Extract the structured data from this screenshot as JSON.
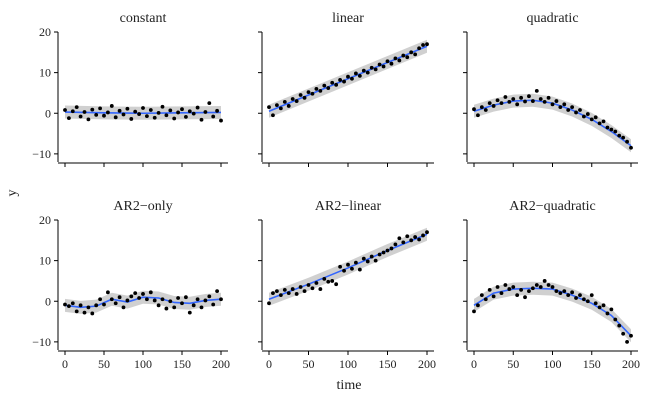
{
  "chart_data": {
    "type": "scatter",
    "layout": "facet-grid-2x3",
    "xlabel": "time",
    "ylabel": "y",
    "xlim": [
      0,
      200
    ],
    "ylim": [
      -12,
      20
    ],
    "xticks": [
      0,
      50,
      100,
      150,
      200
    ],
    "yticks": [
      -10,
      0,
      10,
      20
    ],
    "grid": false,
    "point_color": "#000000",
    "trend_color": "#3366ff",
    "ribbon_color": "#c8c8c8",
    "facets": [
      {
        "title": "constant",
        "trend": {
          "x": [
            0,
            50,
            100,
            150,
            200
          ],
          "y": [
            0.3,
            0.1,
            0.0,
            0.1,
            0.2
          ]
        },
        "points": [
          [
            0,
            0.8
          ],
          [
            5,
            -1.2
          ],
          [
            10,
            0.5
          ],
          [
            15,
            1.5
          ],
          [
            20,
            -0.8
          ],
          [
            25,
            0.3
          ],
          [
            30,
            -1.5
          ],
          [
            35,
            0.9
          ],
          [
            40,
            -0.4
          ],
          [
            45,
            1.2
          ],
          [
            50,
            -0.6
          ],
          [
            55,
            0.2
          ],
          [
            60,
            1.8
          ],
          [
            65,
            -1.0
          ],
          [
            70,
            0.6
          ],
          [
            75,
            -0.3
          ],
          [
            80,
            1.1
          ],
          [
            85,
            -1.4
          ],
          [
            90,
            0.4
          ],
          [
            95,
            -0.2
          ],
          [
            100,
            1.3
          ],
          [
            105,
            -0.7
          ],
          [
            110,
            0.8
          ],
          [
            115,
            -1.1
          ],
          [
            120,
            0.1
          ],
          [
            125,
            1.6
          ],
          [
            130,
            -0.5
          ],
          [
            135,
            0.7
          ],
          [
            140,
            -1.3
          ],
          [
            145,
            0.2
          ],
          [
            150,
            1.0
          ],
          [
            155,
            -0.9
          ],
          [
            160,
            0.5
          ],
          [
            165,
            -0.1
          ],
          [
            170,
            1.4
          ],
          [
            175,
            -1.6
          ],
          [
            180,
            0.3
          ],
          [
            185,
            2.5
          ],
          [
            190,
            -0.8
          ],
          [
            195,
            0.6
          ],
          [
            200,
            -1.8
          ]
        ]
      },
      {
        "title": "linear",
        "trend": {
          "x": [
            0,
            50,
            100,
            150,
            200
          ],
          "y": [
            0.5,
            4.5,
            8.5,
            12.5,
            16.5
          ]
        },
        "points": [
          [
            0,
            1.5
          ],
          [
            5,
            -0.5
          ],
          [
            10,
            2.0
          ],
          [
            15,
            1.2
          ],
          [
            20,
            2.8
          ],
          [
            25,
            1.8
          ],
          [
            30,
            3.5
          ],
          [
            35,
            3.0
          ],
          [
            40,
            4.5
          ],
          [
            45,
            3.8
          ],
          [
            50,
            5.2
          ],
          [
            55,
            4.8
          ],
          [
            60,
            6.0
          ],
          [
            65,
            5.5
          ],
          [
            70,
            6.8
          ],
          [
            75,
            6.2
          ],
          [
            80,
            7.5
          ],
          [
            85,
            7.0
          ],
          [
            90,
            8.2
          ],
          [
            95,
            7.8
          ],
          [
            100,
            9.0
          ],
          [
            105,
            8.5
          ],
          [
            110,
            9.8
          ],
          [
            115,
            9.2
          ],
          [
            120,
            10.5
          ],
          [
            125,
            10.0
          ],
          [
            130,
            11.2
          ],
          [
            135,
            10.8
          ],
          [
            140,
            12.0
          ],
          [
            145,
            11.5
          ],
          [
            150,
            12.8
          ],
          [
            155,
            12.2
          ],
          [
            160,
            13.5
          ],
          [
            165,
            13.0
          ],
          [
            170,
            14.2
          ],
          [
            175,
            13.8
          ],
          [
            180,
            15.0
          ],
          [
            185,
            14.5
          ],
          [
            190,
            16.0
          ],
          [
            195,
            16.8
          ],
          [
            200,
            17.0
          ]
        ]
      },
      {
        "title": "quadratic",
        "trend": {
          "x": [
            0,
            25,
            50,
            75,
            100,
            125,
            150,
            175,
            200
          ],
          "y": [
            0.5,
            2.0,
            3.0,
            3.2,
            2.5,
            0.8,
            -1.5,
            -4.5,
            -8.0
          ]
        },
        "points": [
          [
            0,
            1.0
          ],
          [
            5,
            -0.5
          ],
          [
            10,
            1.5
          ],
          [
            15,
            0.8
          ],
          [
            20,
            2.5
          ],
          [
            25,
            1.8
          ],
          [
            30,
            3.2
          ],
          [
            35,
            2.5
          ],
          [
            40,
            4.0
          ],
          [
            45,
            2.8
          ],
          [
            50,
            3.5
          ],
          [
            55,
            2.2
          ],
          [
            60,
            3.8
          ],
          [
            65,
            2.9
          ],
          [
            70,
            4.2
          ],
          [
            75,
            3.0
          ],
          [
            80,
            5.5
          ],
          [
            85,
            3.5
          ],
          [
            90,
            2.8
          ],
          [
            95,
            3.8
          ],
          [
            100,
            2.2
          ],
          [
            105,
            3.0
          ],
          [
            110,
            1.5
          ],
          [
            115,
            2.2
          ],
          [
            120,
            0.8
          ],
          [
            125,
            1.5
          ],
          [
            130,
            0.2
          ],
          [
            135,
            0.8
          ],
          [
            140,
            -0.8
          ],
          [
            145,
            -0.2
          ],
          [
            150,
            -1.5
          ],
          [
            155,
            -1.0
          ],
          [
            160,
            -2.5
          ],
          [
            165,
            -2.0
          ],
          [
            170,
            -3.5
          ],
          [
            175,
            -4.0
          ],
          [
            180,
            -4.5
          ],
          [
            185,
            -5.5
          ],
          [
            190,
            -6.0
          ],
          [
            195,
            -7.0
          ],
          [
            200,
            -8.5
          ]
        ]
      },
      {
        "title": "AR2−only",
        "trend": {
          "x": [
            0,
            20,
            40,
            60,
            80,
            100,
            120,
            140,
            160,
            180,
            200
          ],
          "y": [
            -1.0,
            -1.5,
            -1.2,
            0.5,
            -0.2,
            1.0,
            0.8,
            -0.3,
            -0.5,
            0.2,
            0.5
          ]
        },
        "points": [
          [
            0,
            -0.8
          ],
          [
            5,
            -1.2
          ],
          [
            10,
            -0.5
          ],
          [
            15,
            -2.5
          ],
          [
            20,
            -1.0
          ],
          [
            25,
            -2.8
          ],
          [
            30,
            -1.5
          ],
          [
            35,
            -3.0
          ],
          [
            40,
            -1.0
          ],
          [
            45,
            0.5
          ],
          [
            50,
            -0.8
          ],
          [
            55,
            2.2
          ],
          [
            60,
            0.5
          ],
          [
            65,
            -0.5
          ],
          [
            70,
            1.0
          ],
          [
            75,
            -1.5
          ],
          [
            80,
            0.2
          ],
          [
            85,
            1.2
          ],
          [
            90,
            2.0
          ],
          [
            95,
            0.8
          ],
          [
            100,
            1.8
          ],
          [
            105,
            0.5
          ],
          [
            110,
            2.2
          ],
          [
            115,
            0.2
          ],
          [
            120,
            -1.0
          ],
          [
            125,
            0.5
          ],
          [
            130,
            -1.8
          ],
          [
            135,
            0.0
          ],
          [
            140,
            -1.5
          ],
          [
            145,
            0.8
          ],
          [
            150,
            -0.5
          ],
          [
            155,
            1.0
          ],
          [
            160,
            -2.8
          ],
          [
            165,
            -1.0
          ],
          [
            170,
            0.5
          ],
          [
            175,
            -1.5
          ],
          [
            180,
            0.2
          ],
          [
            185,
            1.2
          ],
          [
            190,
            -0.8
          ],
          [
            195,
            2.5
          ],
          [
            200,
            0.5
          ]
        ]
      },
      {
        "title": "AR2−linear",
        "trend": {
          "x": [
            0,
            50,
            100,
            150,
            200
          ],
          "y": [
            0.5,
            4.2,
            8.2,
            12.5,
            16.5
          ]
        },
        "points": [
          [
            0,
            -0.5
          ],
          [
            5,
            2.0
          ],
          [
            10,
            2.5
          ],
          [
            15,
            1.5
          ],
          [
            20,
            2.8
          ],
          [
            25,
            2.0
          ],
          [
            30,
            3.0
          ],
          [
            35,
            1.8
          ],
          [
            40,
            3.5
          ],
          [
            45,
            2.5
          ],
          [
            50,
            4.0
          ],
          [
            55,
            3.2
          ],
          [
            60,
            4.5
          ],
          [
            65,
            3.0
          ],
          [
            70,
            5.5
          ],
          [
            75,
            4.8
          ],
          [
            80,
            5.0
          ],
          [
            85,
            4.2
          ],
          [
            90,
            8.5
          ],
          [
            95,
            7.5
          ],
          [
            100,
            9.0
          ],
          [
            105,
            8.0
          ],
          [
            110,
            9.5
          ],
          [
            115,
            7.8
          ],
          [
            120,
            10.5
          ],
          [
            125,
            9.8
          ],
          [
            130,
            11.0
          ],
          [
            135,
            10.0
          ],
          [
            140,
            11.5
          ],
          [
            145,
            12.0
          ],
          [
            150,
            12.5
          ],
          [
            155,
            13.0
          ],
          [
            160,
            14.0
          ],
          [
            165,
            15.5
          ],
          [
            170,
            14.5
          ],
          [
            175,
            16.0
          ],
          [
            180,
            15.0
          ],
          [
            185,
            15.8
          ],
          [
            190,
            15.2
          ],
          [
            195,
            16.2
          ],
          [
            200,
            17.0
          ]
        ]
      },
      {
        "title": "AR2−quadratic",
        "trend": {
          "x": [
            0,
            25,
            50,
            75,
            100,
            125,
            150,
            175,
            200
          ],
          "y": [
            -1.0,
            2.0,
            3.0,
            3.2,
            3.0,
            1.5,
            -0.5,
            -3.5,
            -8.5
          ]
        },
        "points": [
          [
            0,
            -2.5
          ],
          [
            5,
            -1.0
          ],
          [
            10,
            1.5
          ],
          [
            15,
            0.5
          ],
          [
            20,
            2.8
          ],
          [
            25,
            1.2
          ],
          [
            30,
            3.5
          ],
          [
            35,
            2.0
          ],
          [
            40,
            4.0
          ],
          [
            45,
            3.0
          ],
          [
            50,
            3.5
          ],
          [
            55,
            1.5
          ],
          [
            60,
            2.8
          ],
          [
            65,
            1.0
          ],
          [
            70,
            2.5
          ],
          [
            75,
            3.2
          ],
          [
            80,
            4.0
          ],
          [
            85,
            3.5
          ],
          [
            90,
            5.0
          ],
          [
            95,
            4.0
          ],
          [
            100,
            3.5
          ],
          [
            105,
            2.5
          ],
          [
            110,
            2.0
          ],
          [
            115,
            2.5
          ],
          [
            120,
            1.5
          ],
          [
            125,
            2.2
          ],
          [
            130,
            0.8
          ],
          [
            135,
            1.5
          ],
          [
            140,
            0.5
          ],
          [
            145,
            0.0
          ],
          [
            150,
            1.5
          ],
          [
            155,
            -0.5
          ],
          [
            160,
            -1.5
          ],
          [
            165,
            -1.0
          ],
          [
            170,
            -3.0
          ],
          [
            175,
            -2.0
          ],
          [
            180,
            -4.5
          ],
          [
            185,
            -6.0
          ],
          [
            190,
            -8.0
          ],
          [
            195,
            -10.0
          ],
          [
            200,
            -8.5
          ]
        ]
      }
    ]
  }
}
